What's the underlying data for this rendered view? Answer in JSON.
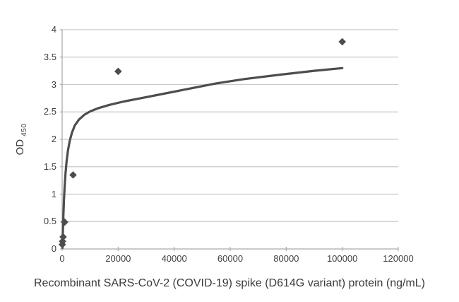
{
  "colors": {
    "series": "#4d4d4d",
    "gridline": "#c9c9c9",
    "axis": "#ababab",
    "tick_label": "#3f3f3f",
    "title": "#3a3a3a",
    "background": "#ffffff"
  },
  "chart_data": {
    "type": "scatter",
    "title": "",
    "xlabel": "Recombinant SARS-CoV-2 (COVID-19) spike (D614G variant) protein (ng/mL)",
    "ylabel": {
      "main": "OD ",
      "sub": "450"
    },
    "xlim": [
      0,
      120000
    ],
    "ylim": [
      0,
      4
    ],
    "grid": "horizontal",
    "legend": "none",
    "x_ticks": [
      {
        "value": 0,
        "label": "0"
      },
      {
        "value": 20000,
        "label": "20000"
      },
      {
        "value": 40000,
        "label": "40000"
      },
      {
        "value": 60000,
        "label": "60000"
      },
      {
        "value": 80000,
        "label": "80000"
      },
      {
        "value": 100000,
        "label": "100000"
      },
      {
        "value": 120000,
        "label": "120000"
      }
    ],
    "y_ticks": [
      {
        "value": 0,
        "label": "0"
      },
      {
        "value": 0.5,
        "label": "0.5"
      },
      {
        "value": 1,
        "label": "1"
      },
      {
        "value": 1.5,
        "label": "1.5"
      },
      {
        "value": 2,
        "label": "2"
      },
      {
        "value": 2.5,
        "label": "2.5"
      },
      {
        "value": 3,
        "label": "3"
      },
      {
        "value": 3.5,
        "label": "3.5"
      },
      {
        "value": 4,
        "label": "4"
      }
    ],
    "series": [
      {
        "name": "standard-data-points",
        "type": "scatter",
        "marker": "diamond",
        "color": "#4d4d4d",
        "points": [
          [
            60,
            0.08
          ],
          [
            150,
            0.14
          ],
          [
            350,
            0.22
          ],
          [
            900,
            0.49
          ],
          [
            3900,
            1.35
          ],
          [
            20000,
            3.24
          ],
          [
            100000,
            3.78
          ]
        ]
      },
      {
        "name": "fitted-curve",
        "type": "line",
        "color": "#4d4d4d",
        "points": [
          [
            120,
            0.02
          ],
          [
            200,
            0.18
          ],
          [
            300,
            0.38
          ],
          [
            450,
            0.62
          ],
          [
            650,
            0.9
          ],
          [
            900,
            1.15
          ],
          [
            1200,
            1.38
          ],
          [
            1600,
            1.6
          ],
          [
            2100,
            1.8
          ],
          [
            2700,
            1.97
          ],
          [
            3500,
            2.12
          ],
          [
            4500,
            2.25
          ],
          [
            6000,
            2.36
          ],
          [
            8000,
            2.45
          ],
          [
            10000,
            2.51
          ],
          [
            13000,
            2.57
          ],
          [
            17000,
            2.63
          ],
          [
            22000,
            2.69
          ],
          [
            28000,
            2.75
          ],
          [
            35000,
            2.82
          ],
          [
            45000,
            2.92
          ],
          [
            55000,
            3.02
          ],
          [
            65000,
            3.1
          ],
          [
            78000,
            3.18
          ],
          [
            90000,
            3.25
          ],
          [
            100000,
            3.3
          ]
        ]
      }
    ]
  }
}
